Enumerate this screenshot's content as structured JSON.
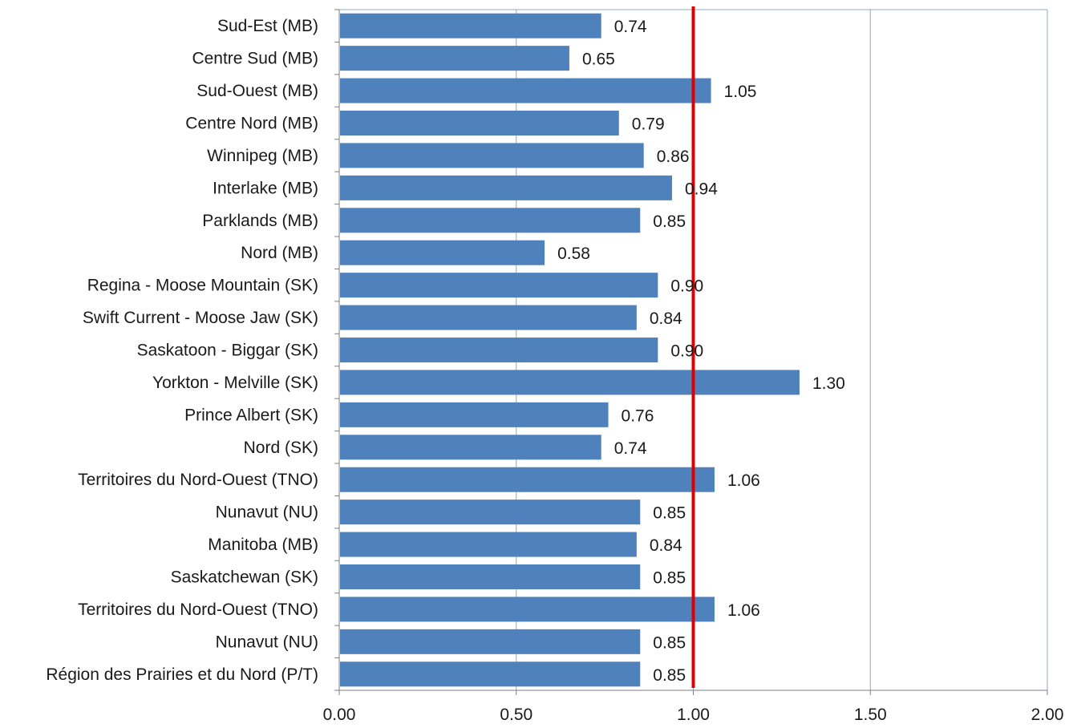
{
  "chart_data": {
    "type": "bar",
    "orientation": "horizontal",
    "categories": [
      "Sud-Est (MB)",
      "Centre Sud (MB)",
      "Sud-Ouest (MB)",
      "Centre Nord (MB)",
      "Winnipeg (MB)",
      "Interlake (MB)",
      "Parklands (MB)",
      "Nord (MB)",
      "Regina - Moose Mountain (SK)",
      "Swift Current - Moose Jaw (SK)",
      "Saskatoon - Biggar (SK)",
      "Yorkton - Melville (SK)",
      "Prince Albert (SK)",
      "Nord (SK)",
      "Territoires du Nord-Ouest (TNO)",
      "Nunavut (NU)",
      "Manitoba (MB)",
      "Saskatchewan (SK)",
      "Territoires du Nord-Ouest (TNO)",
      "Nunavut (NU)",
      "Région des Prairies et du Nord (P/T)"
    ],
    "values": [
      0.74,
      0.65,
      1.05,
      0.79,
      0.86,
      0.94,
      0.85,
      0.58,
      0.9,
      0.84,
      0.9,
      1.3,
      0.76,
      0.74,
      1.06,
      0.85,
      0.84,
      0.85,
      1.06,
      0.85,
      0.85
    ],
    "value_labels": [
      "0.74",
      "0.65",
      "1.05",
      "0.79",
      "0.86",
      "0.94",
      "0.85",
      "0.58",
      "0.90",
      "0.84",
      "0.90",
      "1.30",
      "0.76",
      "0.74",
      "1.06",
      "0.85",
      "0.84",
      "0.85",
      "1.06",
      "0.85",
      "0.85"
    ],
    "xlim": [
      0,
      2
    ],
    "x_ticks": [
      "0.00",
      "0.50",
      "1.00",
      "1.50",
      "2.00"
    ],
    "x_tick_values": [
      0,
      0.5,
      1,
      1.5,
      2
    ],
    "reference_line": {
      "value": 1.0,
      "color": "#e00000"
    },
    "grid": "vertical",
    "bar_color": "#4f81bd",
    "gridline_color": "#8ea9c8",
    "title": "",
    "xlabel": "",
    "ylabel": ""
  }
}
